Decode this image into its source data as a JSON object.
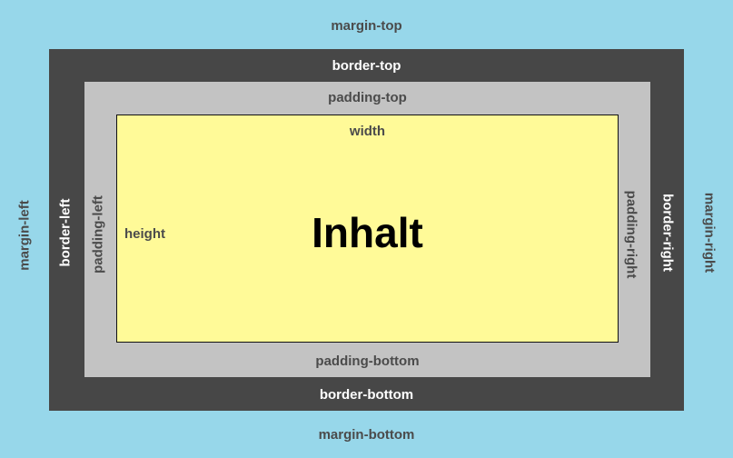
{
  "labels": {
    "margin_top": "margin-top",
    "margin_bottom": "margin-bottom",
    "margin_left": "margin-left",
    "margin_right": "margin-right",
    "border_top": "border-top",
    "border_bottom": "border-bottom",
    "border_left": "border-left",
    "border_right": "border-right",
    "padding_top": "padding-top",
    "padding_bottom": "padding-bottom",
    "padding_left": "padding-left",
    "padding_right": "padding-right",
    "width": "width",
    "height": "height",
    "content": "Inhalt"
  },
  "colors": {
    "margin": "#97d7ea",
    "border": "#474747",
    "padding": "#c3c3c3",
    "content": "#fffa98"
  }
}
